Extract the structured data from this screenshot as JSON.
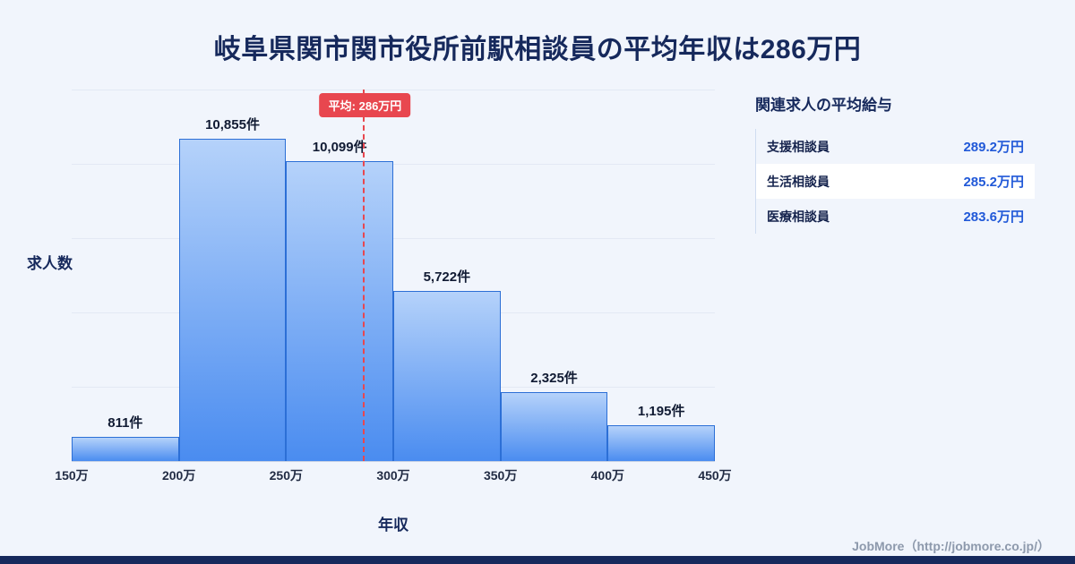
{
  "page": {
    "title": "岐阜県関市関市役所前駅相談員の平均年収は286万円",
    "footer_credit": "JobMore（http://jobmore.co.jp/）"
  },
  "chart_data": {
    "type": "bar",
    "title": "岐阜県関市関市役所前駅相談員の平均年収は286万円",
    "categories": [
      "150万-200万",
      "200万-250万",
      "250万-300万",
      "300万-350万",
      "350万-400万",
      "400万-450万"
    ],
    "values": [
      811,
      10855,
      10099,
      5722,
      2325,
      1195
    ],
    "bar_labels": [
      "811件",
      "10,855件",
      "10,099件",
      "5,722件",
      "2,325件",
      "1,195件"
    ],
    "x_ticks": [
      "150万",
      "200万",
      "250万",
      "300万",
      "350万",
      "400万",
      "450万"
    ],
    "xlabel": "年収",
    "ylabel": "求人数",
    "ylim": [
      0,
      12500
    ],
    "x_range": [
      150,
      450
    ],
    "grid": true,
    "legend": "none",
    "average_line": {
      "value": 286,
      "label": "平均: 286万円",
      "color": "#e8474f"
    },
    "bar_color_top": "#b5d2fa",
    "bar_color_bottom": "#4a8cf0",
    "bar_border_color": "#2c6fd6"
  },
  "side_panel": {
    "heading": "関連求人の平均給与",
    "rows": [
      {
        "label": "支援相談員",
        "value": "289.2万円"
      },
      {
        "label": "生活相談員",
        "value": "285.2万円"
      },
      {
        "label": "医療相談員",
        "value": "283.6万円"
      }
    ]
  }
}
